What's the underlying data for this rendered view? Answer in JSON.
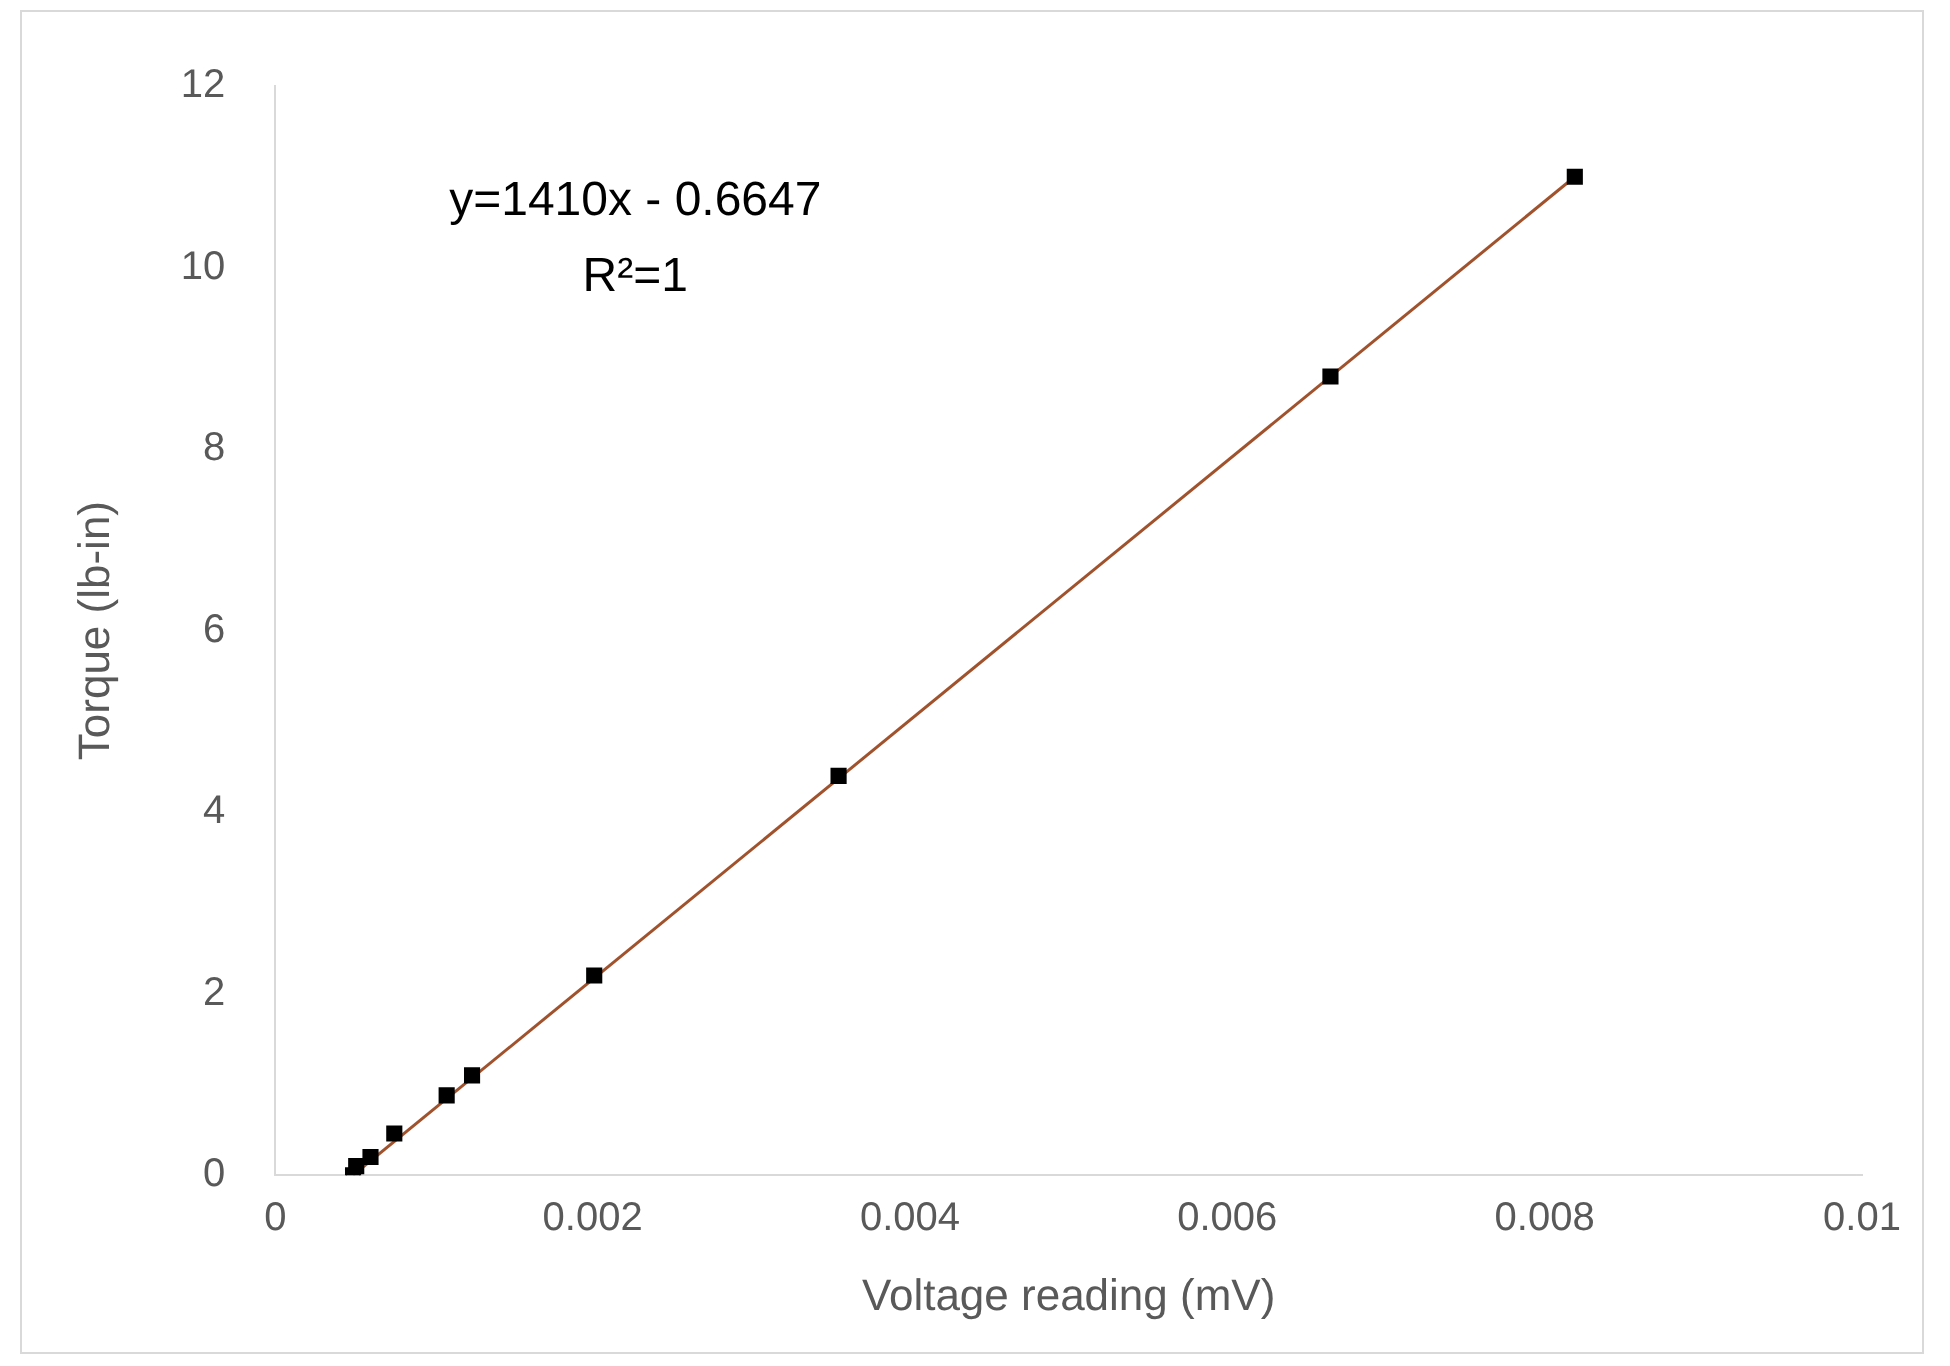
{
  "chart_data": {
    "type": "scatter",
    "xlabel": "Voltage reading (mV)",
    "ylabel": "Torque (lb-in)",
    "annotations": [
      "y=1410x - 0.6647",
      "R²=1"
    ],
    "series": [
      {
        "color": "#000000",
        "marker": "square",
        "x": [
          0.00049,
          0.00051,
          0.0006,
          0.00075,
          0.00108,
          0.00124,
          0.00201,
          0.00355,
          0.00665,
          0.00819
        ],
        "values": [
          0,
          0.1,
          0.2,
          0.46,
          0.88,
          1.1,
          2.2,
          4.4,
          8.8,
          11
        ]
      },
      {
        "type": "line",
        "color": "#a0522d",
        "marker": "none",
        "line_style": "solid",
        "x": [
          0.00049,
          0.00819
        ],
        "values": [
          0,
          11
        ]
      }
    ],
    "xlim": [
      0,
      0.01
    ],
    "xticks": [
      0,
      0.002,
      0.004,
      0.006,
      0.008,
      0.01
    ],
    "ylim": [
      0,
      12
    ],
    "yticks": [
      0,
      2,
      4,
      6,
      8,
      10,
      12
    ],
    "grid": false,
    "legend": false
  }
}
